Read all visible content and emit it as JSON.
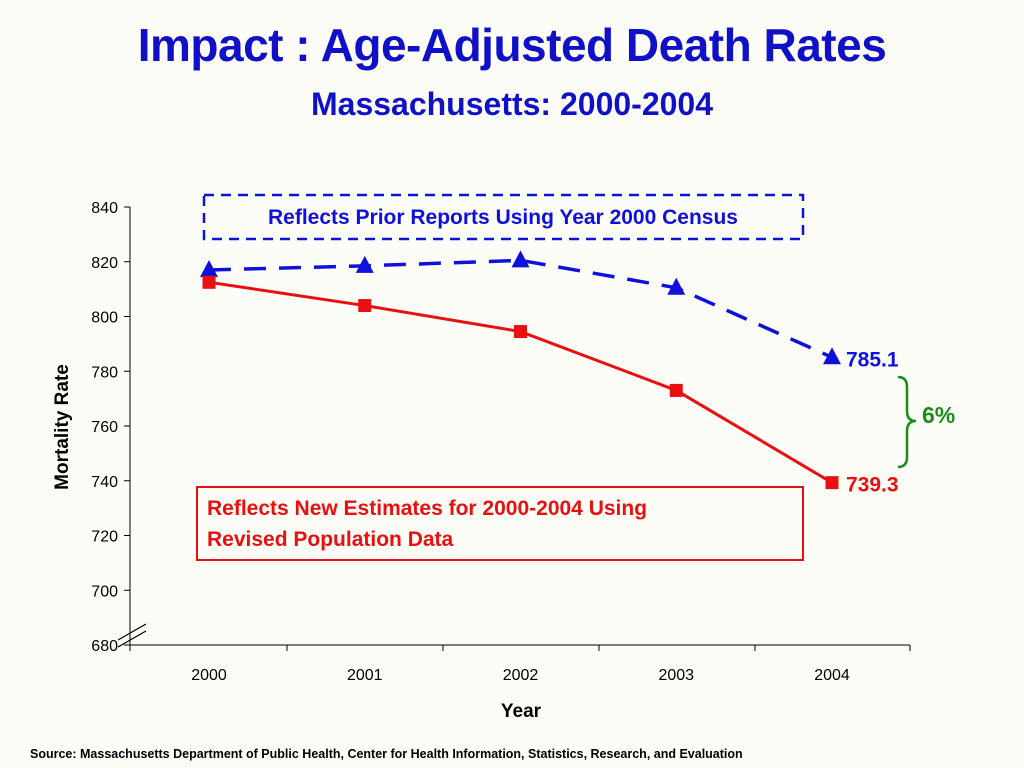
{
  "title": "Impact : Age-Adjusted Death Rates",
  "subtitle": "Massachusetts:  2000-2004",
  "source": "Source:  Massachusetts Department of Public Health, Center for Health Information, Statistics, Research, and Evaluation",
  "colors": {
    "title": "#1010c8",
    "prior_series": "#1010dd",
    "new_series": "#e81010",
    "difference_brace": "#1a8c1a"
  },
  "chart_data": {
    "type": "line",
    "xlabel": "Year",
    "ylabel": "Mortality Rate",
    "categories": [
      "2000",
      "2001",
      "2002",
      "2003",
      "2004"
    ],
    "ylim": [
      680,
      840
    ],
    "yticks": [
      680,
      700,
      720,
      740,
      760,
      780,
      800,
      820,
      840
    ],
    "axis_break": true,
    "grid": false,
    "series": [
      {
        "key": "prior",
        "values": [
          817,
          818.5,
          820.5,
          810.5,
          785.1
        ],
        "color": "#1010dd",
        "line_style": "dashed",
        "marker": "triangle",
        "end_label": "785.1",
        "callout": "Reflects Prior Reports Using Year 2000 Census",
        "callout_border": "dashed"
      },
      {
        "key": "new",
        "values": [
          812.5,
          804,
          794.5,
          773,
          739.3
        ],
        "color": "#e81010",
        "line_style": "solid",
        "marker": "square",
        "end_label": "739.3",
        "callout": "Reflects New Estimates for 2000-2004 Using Revised Population Data",
        "callout_lines": [
          "Reflects New Estimates for 2000-2004 Using",
          "Revised Population Data"
        ],
        "callout_border": "solid"
      }
    ],
    "annotations": [
      {
        "text": "6%",
        "color": "#1a8c1a",
        "between": [
          "prior",
          "new"
        ],
        "at": "2004"
      }
    ]
  }
}
